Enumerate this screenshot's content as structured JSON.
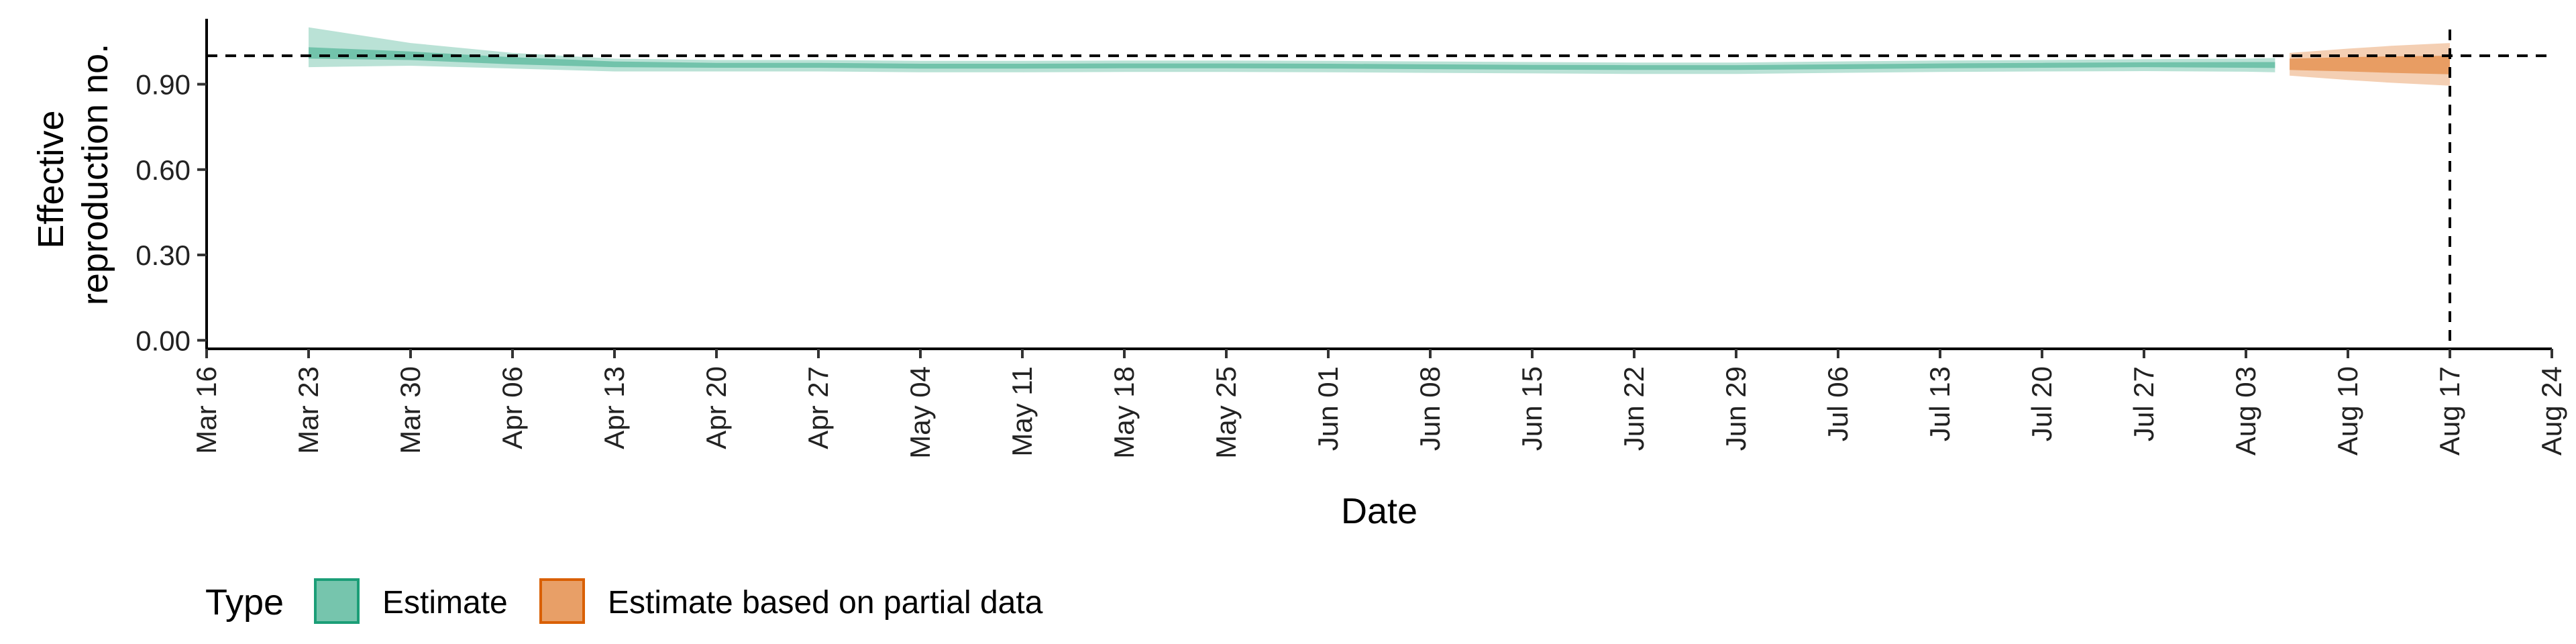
{
  "chart_data": {
    "type": "area",
    "title": "",
    "xlabel": "Date",
    "ylabel": [
      "Effective",
      "reproduction no."
    ],
    "x_type": "date",
    "xlim": [
      "2020-03-16",
      "2020-08-24"
    ],
    "ylim": [
      -0.03,
      1.13
    ],
    "x_ticks": [
      {
        "date": "2020-03-16",
        "label": "Mar 16"
      },
      {
        "date": "2020-03-23",
        "label": "Mar 23"
      },
      {
        "date": "2020-03-30",
        "label": "Mar 30"
      },
      {
        "date": "2020-04-06",
        "label": "Apr 06"
      },
      {
        "date": "2020-04-13",
        "label": "Apr 13"
      },
      {
        "date": "2020-04-20",
        "label": "Apr 20"
      },
      {
        "date": "2020-04-27",
        "label": "Apr 27"
      },
      {
        "date": "2020-05-04",
        "label": "May 04"
      },
      {
        "date": "2020-05-11",
        "label": "May 11"
      },
      {
        "date": "2020-05-18",
        "label": "May 18"
      },
      {
        "date": "2020-05-25",
        "label": "May 25"
      },
      {
        "date": "2020-06-01",
        "label": "Jun 01"
      },
      {
        "date": "2020-06-08",
        "label": "Jun 08"
      },
      {
        "date": "2020-06-15",
        "label": "Jun 15"
      },
      {
        "date": "2020-06-22",
        "label": "Jun 22"
      },
      {
        "date": "2020-06-29",
        "label": "Jun 29"
      },
      {
        "date": "2020-07-06",
        "label": "Jul 06"
      },
      {
        "date": "2020-07-13",
        "label": "Jul 13"
      },
      {
        "date": "2020-07-20",
        "label": "Jul 20"
      },
      {
        "date": "2020-07-27",
        "label": "Jul 27"
      },
      {
        "date": "2020-08-03",
        "label": "Aug 03"
      },
      {
        "date": "2020-08-10",
        "label": "Aug 10"
      },
      {
        "date": "2020-08-17",
        "label": "Aug 17"
      },
      {
        "date": "2020-08-24",
        "label": "Aug 24"
      }
    ],
    "y_ticks": [
      {
        "value": 0.0,
        "label": "0.00"
      },
      {
        "value": 0.3,
        "label": "0.30"
      },
      {
        "value": 0.6,
        "label": "0.60"
      },
      {
        "value": 0.9,
        "label": "0.90"
      }
    ],
    "reference_lines": {
      "horizontal_y": 1.0,
      "vertical_date": "2020-08-17"
    },
    "grid": false,
    "legend": {
      "position": "bottom",
      "title": "Type",
      "entries": [
        {
          "label": "Estimate",
          "color": "#1b9e77"
        },
        {
          "label": "Estimate based on partial data",
          "color": "#d95f02"
        }
      ]
    },
    "series": [
      {
        "name": "Estimate",
        "color": "#1b9e77",
        "points": [
          {
            "date": "2020-03-23",
            "lower90": 0.96,
            "upper90": 1.1,
            "lower50": 0.99,
            "upper50": 1.03
          },
          {
            "date": "2020-03-30",
            "lower90": 0.965,
            "upper90": 1.045,
            "lower50": 0.985,
            "upper50": 1.015
          },
          {
            "date": "2020-04-06",
            "lower90": 0.955,
            "upper90": 1.01,
            "lower50": 0.97,
            "upper50": 0.995
          },
          {
            "date": "2020-04-13",
            "lower90": 0.945,
            "upper90": 0.99,
            "lower50": 0.96,
            "upper50": 0.98
          },
          {
            "date": "2020-04-20",
            "lower90": 0.945,
            "upper90": 0.985,
            "lower50": 0.958,
            "upper50": 0.975
          },
          {
            "date": "2020-04-27",
            "lower90": 0.945,
            "upper90": 0.985,
            "lower50": 0.958,
            "upper50": 0.975
          },
          {
            "date": "2020-05-04",
            "lower90": 0.942,
            "upper90": 0.982,
            "lower50": 0.955,
            "upper50": 0.972
          },
          {
            "date": "2020-05-11",
            "lower90": 0.942,
            "upper90": 0.982,
            "lower50": 0.955,
            "upper50": 0.972
          },
          {
            "date": "2020-05-18",
            "lower90": 0.943,
            "upper90": 0.983,
            "lower50": 0.956,
            "upper50": 0.973
          },
          {
            "date": "2020-05-25",
            "lower90": 0.943,
            "upper90": 0.983,
            "lower50": 0.956,
            "upper50": 0.973
          },
          {
            "date": "2020-06-01",
            "lower90": 0.942,
            "upper90": 0.982,
            "lower50": 0.955,
            "upper50": 0.972
          },
          {
            "date": "2020-06-08",
            "lower90": 0.94,
            "upper90": 0.98,
            "lower50": 0.953,
            "upper50": 0.97
          },
          {
            "date": "2020-06-15",
            "lower90": 0.938,
            "upper90": 0.978,
            "lower50": 0.951,
            "upper50": 0.968
          },
          {
            "date": "2020-06-22",
            "lower90": 0.936,
            "upper90": 0.976,
            "lower50": 0.95,
            "upper50": 0.967
          },
          {
            "date": "2020-06-29",
            "lower90": 0.936,
            "upper90": 0.976,
            "lower50": 0.95,
            "upper50": 0.967
          },
          {
            "date": "2020-07-06",
            "lower90": 0.94,
            "upper90": 0.98,
            "lower50": 0.953,
            "upper50": 0.97
          },
          {
            "date": "2020-07-13",
            "lower90": 0.943,
            "upper90": 0.983,
            "lower50": 0.956,
            "upper50": 0.973
          },
          {
            "date": "2020-07-20",
            "lower90": 0.945,
            "upper90": 0.985,
            "lower50": 0.958,
            "upper50": 0.975
          },
          {
            "date": "2020-07-27",
            "lower90": 0.946,
            "upper90": 0.988,
            "lower50": 0.96,
            "upper50": 0.977
          },
          {
            "date": "2020-08-03",
            "lower90": 0.944,
            "upper90": 0.99,
            "lower50": 0.958,
            "upper50": 0.978
          },
          {
            "date": "2020-08-05",
            "lower90": 0.942,
            "upper90": 0.992,
            "lower50": 0.957,
            "upper50": 0.978
          }
        ]
      },
      {
        "name": "Estimate based on partial data",
        "color": "#d95f02",
        "points": [
          {
            "date": "2020-08-06",
            "lower90": 0.93,
            "upper90": 1.01,
            "lower50": 0.95,
            "upper50": 0.99
          },
          {
            "date": "2020-08-10",
            "lower90": 0.915,
            "upper90": 1.025,
            "lower50": 0.945,
            "upper50": 0.995
          },
          {
            "date": "2020-08-13",
            "lower90": 0.905,
            "upper90": 1.035,
            "lower50": 0.94,
            "upper50": 0.998
          },
          {
            "date": "2020-08-17",
            "lower90": 0.895,
            "upper90": 1.045,
            "lower50": 0.935,
            "upper50": 1.0
          }
        ]
      }
    ]
  }
}
